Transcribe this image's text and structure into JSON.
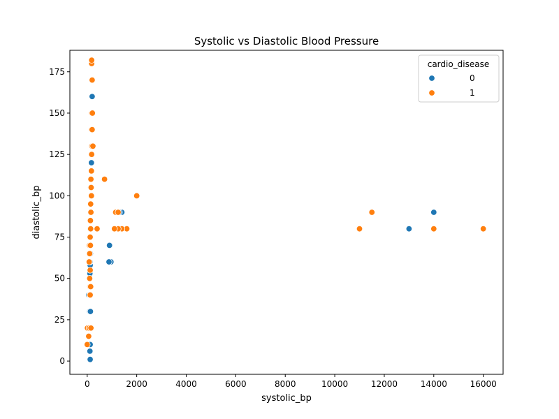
{
  "chart_data": {
    "type": "scatter",
    "title": "Systolic vs Diastolic Blood Pressure",
    "xlabel": "systolic_bp",
    "ylabel": "diastolic_bp",
    "xlim": [
      -700,
      16800
    ],
    "ylim": [
      -8,
      188
    ],
    "xticks": [
      0,
      2000,
      4000,
      6000,
      8000,
      10000,
      12000,
      14000,
      16000
    ],
    "yticks": [
      0,
      25,
      50,
      75,
      100,
      125,
      150,
      175
    ],
    "grid": false,
    "legend": {
      "title": "cardio_disease",
      "placement": "top-right"
    },
    "series": [
      {
        "name": "0",
        "color": "#1f77b4",
        "points": [
          [
            14000,
            90
          ],
          [
            13000,
            80
          ],
          [
            960,
            60
          ],
          [
            880,
            60
          ],
          [
            900,
            70
          ],
          [
            1400,
            90
          ],
          [
            1300,
            90
          ],
          [
            120,
            1
          ],
          [
            110,
            6
          ],
          [
            100,
            10
          ],
          [
            120,
            10
          ],
          [
            70,
            20
          ],
          [
            100,
            30
          ],
          [
            130,
            30
          ],
          [
            60,
            40
          ],
          [
            100,
            50
          ],
          [
            110,
            53
          ],
          [
            115,
            55
          ],
          [
            120,
            58
          ],
          [
            110,
            60
          ],
          [
            130,
            65
          ],
          [
            110,
            70
          ],
          [
            100,
            75
          ],
          [
            120,
            80
          ],
          [
            130,
            85
          ],
          [
            140,
            90
          ],
          [
            150,
            95
          ],
          [
            160,
            100
          ],
          [
            140,
            105
          ],
          [
            150,
            110
          ],
          [
            160,
            115
          ],
          [
            170,
            120
          ],
          [
            180,
            125
          ],
          [
            170,
            120
          ],
          [
            160,
            140
          ],
          [
            200,
            160
          ]
        ]
      },
      {
        "name": "1",
        "color": "#ff7f0e",
        "points": [
          [
            16000,
            80
          ],
          [
            14000,
            80
          ],
          [
            11000,
            80
          ],
          [
            11500,
            90
          ],
          [
            2000,
            100
          ],
          [
            700,
            110
          ],
          [
            1600,
            80
          ],
          [
            1400,
            80
          ],
          [
            1250,
            80
          ],
          [
            1100,
            80
          ],
          [
            1200,
            90
          ],
          [
            1150,
            90
          ],
          [
            1250,
            90
          ],
          [
            400,
            80
          ],
          [
            0,
            10
          ],
          [
            10,
            20
          ],
          [
            60,
            15
          ],
          [
            80,
            20
          ],
          [
            150,
            20
          ],
          [
            100,
            40
          ],
          [
            120,
            40
          ],
          [
            110,
            45
          ],
          [
            140,
            45
          ],
          [
            100,
            50
          ],
          [
            120,
            55
          ],
          [
            80,
            60
          ],
          [
            100,
            65
          ],
          [
            90,
            70
          ],
          [
            130,
            70
          ],
          [
            120,
            75
          ],
          [
            140,
            80
          ],
          [
            130,
            85
          ],
          [
            150,
            90
          ],
          [
            140,
            95
          ],
          [
            170,
            100
          ],
          [
            160,
            105
          ],
          [
            150,
            110
          ],
          [
            170,
            115
          ],
          [
            180,
            125
          ],
          [
            190,
            130
          ],
          [
            230,
            130
          ],
          [
            170,
            140
          ],
          [
            200,
            140
          ],
          [
            180,
            150
          ],
          [
            210,
            150
          ],
          [
            200,
            170
          ],
          [
            180,
            180
          ],
          [
            180,
            182
          ]
        ]
      }
    ]
  }
}
